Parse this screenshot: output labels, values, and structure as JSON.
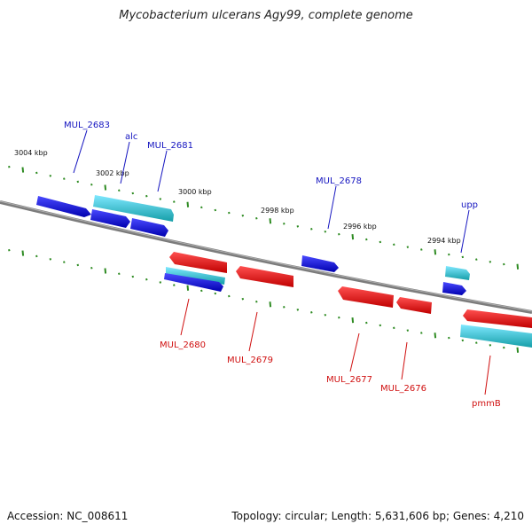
{
  "title": "Mycobacterium ulcerans Agy99, complete genome",
  "footer": {
    "accession": "Accession: NC_008611",
    "summary": "Topology: circular; Length: 5,631,606 bp; Genes: 4,210"
  },
  "colors": {
    "backbone": "#888888",
    "tick": "#2e8b22",
    "forward_gene": "#1a1aff",
    "forward_rna": "#33cccc",
    "reverse_gene": "#ff2020",
    "forward_label": "#1515c0",
    "reverse_label": "#d01010"
  },
  "scale_labels": [
    "3004 kbp",
    "3002 kbp",
    "3000 kbp",
    "2998 kbp",
    "2996 kbp",
    "2994 kbp"
  ],
  "genes": {
    "forward": [
      "MUL_2683",
      "alc",
      "MUL_2681",
      "MUL_2678",
      "upp"
    ],
    "reverse": [
      "MUL_2680",
      "MUL_2679",
      "MUL_2677",
      "MUL_2676",
      "pmmB"
    ]
  }
}
